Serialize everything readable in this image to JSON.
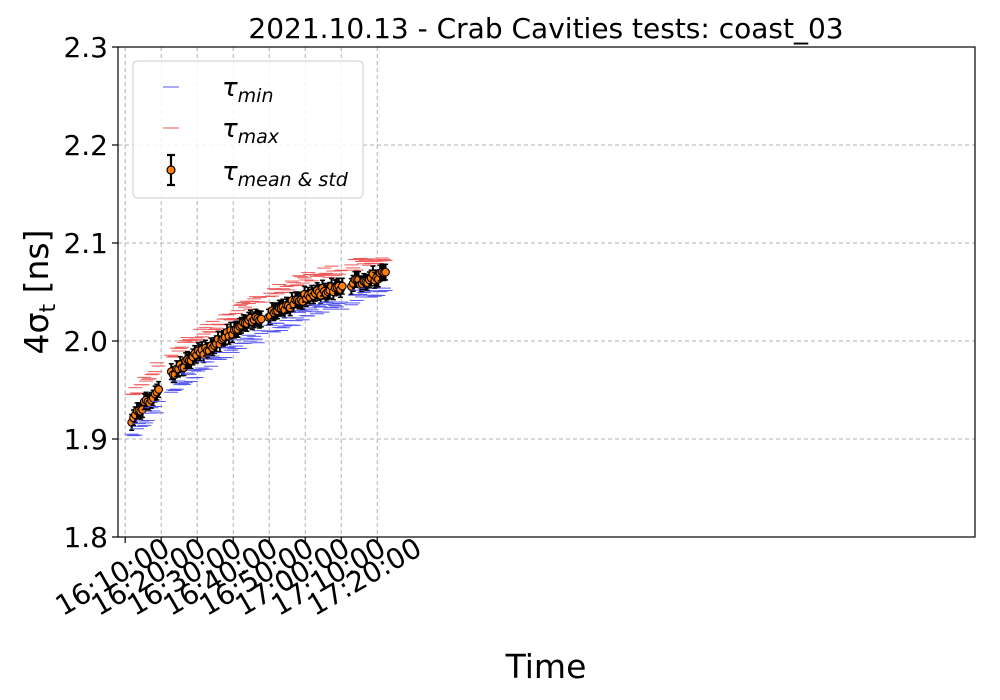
{
  "chart_data": {
    "type": "scatter",
    "title": "2021.10.13 - Crab Cavities tests: coast_03",
    "xlabel": "Time",
    "ylabel_main": "4σ",
    "ylabel_sub": "t",
    "ylabel_unit": " [ns]",
    "ylim": [
      1.8,
      2.3
    ],
    "yticks": [
      "1.8",
      "1.9",
      "2.0",
      "2.1",
      "2.2",
      "2.3"
    ],
    "ytick_values": [
      1.8,
      1.9,
      2.0,
      2.1,
      2.2,
      2.3
    ],
    "xlim_minutes": [
      968.0,
      1206.0
    ],
    "xtick_labels": [
      "16:10:00",
      "16:20:00",
      "16:30:00",
      "16:40:00",
      "16:50:00",
      "17:00:00",
      "17:10:00",
      "17:20:00"
    ],
    "xtick_minutes": [
      970,
      980,
      990,
      1000,
      1010,
      1020,
      1030,
      1040
    ],
    "grid": true,
    "legend": {
      "placement": "top-left",
      "entries": [
        {
          "symbol": "τ",
          "sub": "min"
        },
        {
          "symbol": "τ",
          "sub": "max"
        },
        {
          "symbol": "τ",
          "sub": "mean & std"
        }
      ]
    },
    "colors": {
      "min": "#5555ee",
      "max": "#ee5555",
      "mean_fill": "#ff7f0e",
      "errorbar": "#000000",
      "grid": "#b0b0b0"
    },
    "series": [
      {
        "name": "τmin",
        "x": [
          "16:12:00",
          "16:14:00",
          "16:17:00",
          "16:21:00",
          "16:26:00",
          "16:31:00",
          "16:36:00",
          "16:41:00",
          "16:46:00",
          "16:51:00",
          "16:56:00",
          "17:01:00",
          "17:06:00",
          "17:10:00",
          "17:14:00",
          "17:18:00",
          "17:22:00"
        ],
        "y": [
          1.905,
          1.915,
          1.925,
          1.94,
          1.958,
          1.972,
          1.985,
          1.996,
          2.002,
          2.012,
          2.02,
          2.03,
          2.035,
          2.038,
          2.045,
          2.05,
          2.052
        ]
      },
      {
        "name": "τmax",
        "x": [
          "16:12:00",
          "16:14:00",
          "16:17:00",
          "16:21:00",
          "16:26:00",
          "16:31:00",
          "16:36:00",
          "16:41:00",
          "16:46:00",
          "16:51:00",
          "16:56:00",
          "17:01:00",
          "17:06:00",
          "17:10:00",
          "17:14:00",
          "17:18:00",
          "17:22:00"
        ],
        "y": [
          1.945,
          1.952,
          1.965,
          1.982,
          1.995,
          2.008,
          2.02,
          2.03,
          2.04,
          2.05,
          2.058,
          2.065,
          2.07,
          2.072,
          2.078,
          2.082,
          2.085
        ]
      },
      {
        "name": "τmean & std",
        "x": [
          "16:12:00",
          "16:14:00",
          "16:17:00",
          "16:21:00",
          "16:26:00",
          "16:31:00",
          "16:36:00",
          "16:41:00",
          "16:46:00",
          "16:51:00",
          "16:56:00",
          "17:01:00",
          "17:06:00",
          "17:10:00",
          "17:14:00",
          "17:18:00",
          "17:22:00"
        ],
        "y": [
          1.92,
          1.93,
          1.94,
          1.962,
          1.975,
          1.988,
          2.0,
          2.012,
          2.022,
          2.03,
          2.038,
          2.046,
          2.052,
          2.056,
          2.06,
          2.064,
          2.068
        ],
        "std": [
          0.008,
          0.008,
          0.008,
          0.008,
          0.008,
          0.008,
          0.008,
          0.008,
          0.008,
          0.008,
          0.008,
          0.008,
          0.008,
          0.008,
          0.008,
          0.008,
          0.008
        ]
      }
    ]
  }
}
